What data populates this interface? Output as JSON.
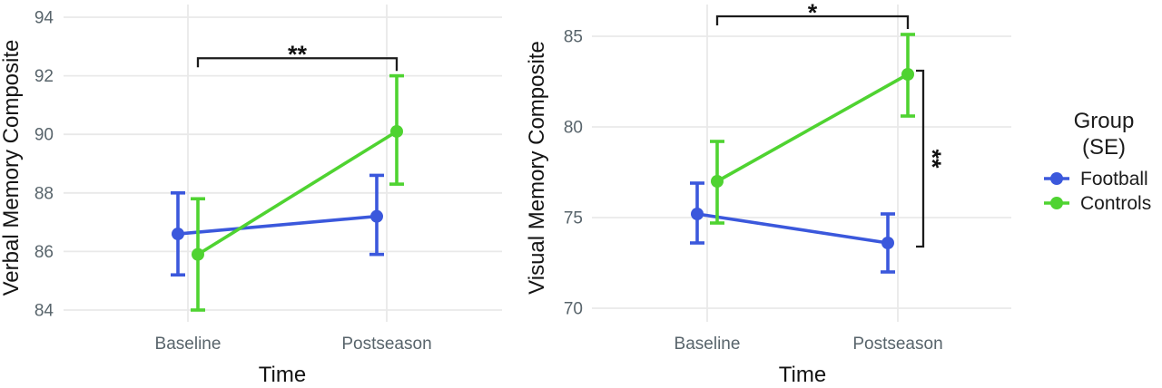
{
  "colors": {
    "football": "#3b58dc",
    "controls": "#4fd331",
    "grid": "#e9e9e9",
    "tick_text": "#58646b",
    "title_text": "#141414",
    "bracket": "#1c1c1c",
    "background": "#ffffff"
  },
  "legend": {
    "title_line1": "Group",
    "title_line2": "(SE)",
    "position": "right",
    "items": [
      {
        "label": "Football",
        "color_key": "football"
      },
      {
        "label": "Controls",
        "color_key": "controls"
      }
    ]
  },
  "chart_data": [
    {
      "type": "line",
      "title": "",
      "ylabel": "Verbal Memory Composite",
      "xlabel": "Time",
      "categories": [
        "Baseline",
        "Postseason"
      ],
      "yticks": [
        84,
        86,
        88,
        90,
        92,
        94
      ],
      "ylim": [
        83.6,
        94.4
      ],
      "grid": true,
      "error_bars": "SE",
      "series": [
        {
          "name": "Football",
          "color_key": "football",
          "values": [
            86.6,
            87.2
          ],
          "err_low": [
            85.2,
            85.9
          ],
          "err_high": [
            88.0,
            88.6
          ]
        },
        {
          "name": "Controls",
          "color_key": "controls",
          "values": [
            85.9,
            90.1
          ],
          "err_low": [
            84.0,
            88.3
          ],
          "err_high": [
            87.8,
            92.0
          ]
        }
      ],
      "significance": [
        {
          "type": "between-times",
          "label": "**",
          "group": "Controls",
          "y": 92.6
        }
      ]
    },
    {
      "type": "line",
      "title": "",
      "ylabel": "Visual Memory Composite",
      "xlabel": "Time",
      "categories": [
        "Baseline",
        "Postseason"
      ],
      "yticks": [
        70,
        75,
        80,
        85
      ],
      "ylim": [
        69.3,
        86.8
      ],
      "grid": true,
      "error_bars": "SE",
      "series": [
        {
          "name": "Football",
          "color_key": "football",
          "values": [
            75.2,
            73.6
          ],
          "err_low": [
            73.6,
            72.0
          ],
          "err_high": [
            76.9,
            75.2
          ]
        },
        {
          "name": "Controls",
          "color_key": "controls",
          "values": [
            77.0,
            82.9
          ],
          "err_low": [
            74.7,
            80.6
          ],
          "err_high": [
            79.2,
            85.1
          ]
        }
      ],
      "significance": [
        {
          "type": "between-times",
          "label": "*",
          "group": "Controls",
          "y": 86.1
        },
        {
          "type": "between-groups",
          "label": "**",
          "time": "Postseason",
          "y_from": 83.1,
          "y_to": 73.4
        }
      ]
    }
  ]
}
